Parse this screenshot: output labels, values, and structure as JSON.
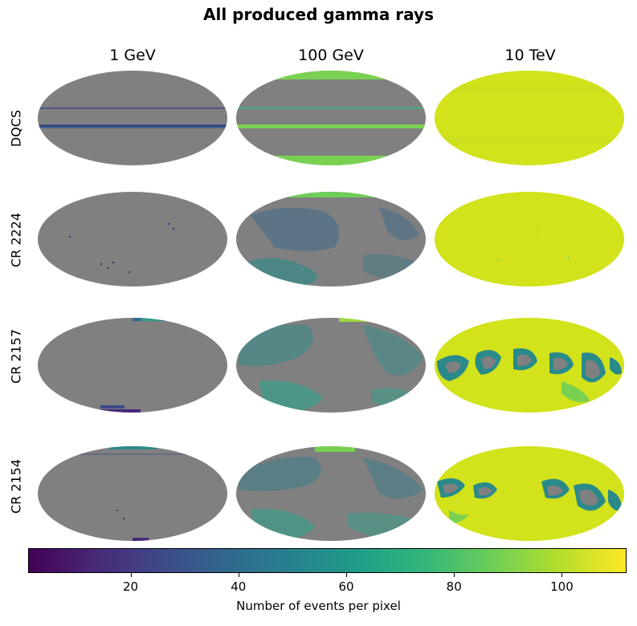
{
  "chart_data": {
    "type": "heatmap",
    "title": "All produced gamma rays",
    "columns": [
      "1 GeV",
      "100 GeV",
      "10 TeV"
    ],
    "rows": [
      "DQCS",
      "CR 2224",
      "CR 2157",
      "CR 2154"
    ],
    "colorbar": {
      "label": "Number of events per pixel",
      "ticks": [
        20,
        40,
        60,
        80,
        100
      ],
      "range": [
        1,
        112
      ],
      "colormap": "viridis"
    },
    "missing_color": "#808080"
  }
}
